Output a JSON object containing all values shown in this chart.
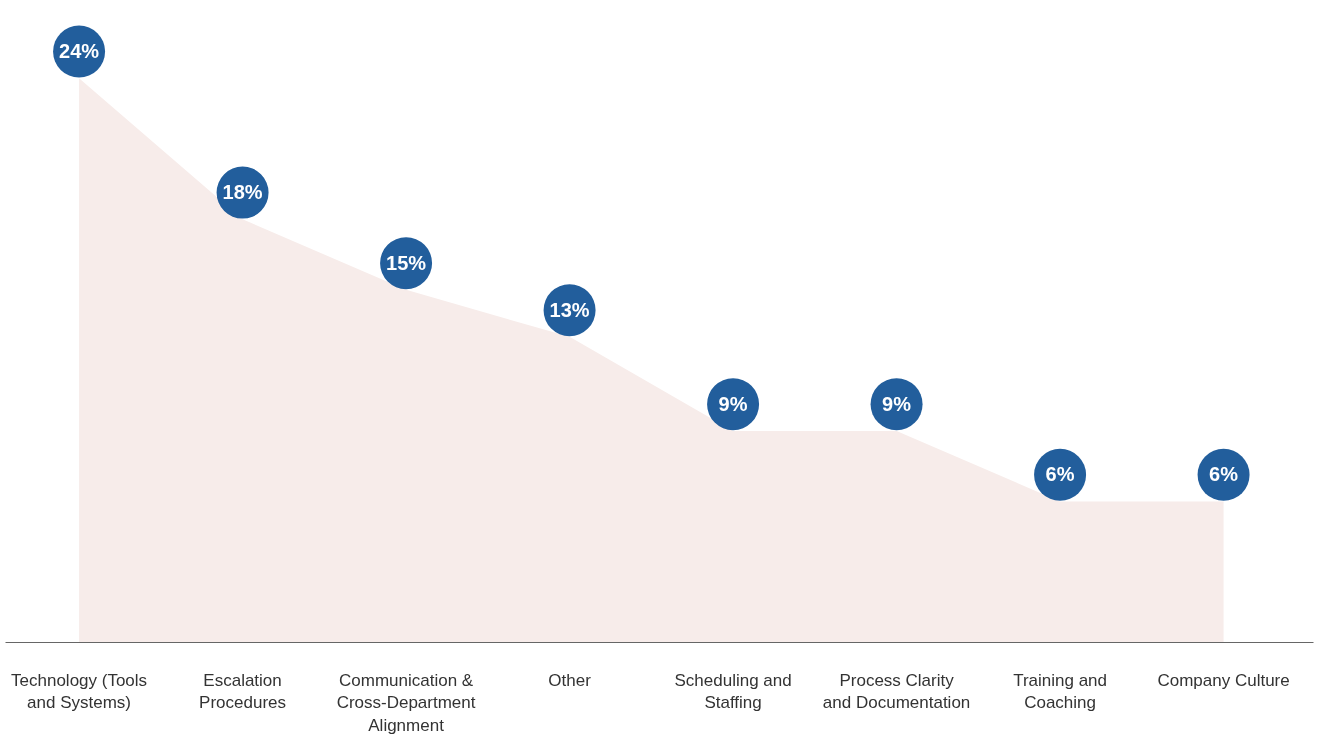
{
  "chart_data": {
    "type": "area",
    "categories": [
      "Technology (Tools and Systems)",
      "Escalation Procedures",
      "Communication & Cross-Department Alignment",
      "Other",
      "Scheduling and Staffing",
      "Process Clarity and Documentation",
      "Training and Coaching",
      "Company Culture"
    ],
    "series": [
      {
        "color": "#f7ecea",
        "values": [
          24,
          18,
          15,
          13,
          9,
          9,
          6,
          6
        ],
        "value_labels": [
          "24%",
          "18%",
          "15%",
          "13%",
          "9%",
          "9%",
          "6%",
          "6%"
        ]
      }
    ],
    "colors": [
      "#225e9c",
      "#225e9c",
      "#225e9c",
      "#225e9c",
      "#225e9c",
      "#225e9c",
      "#225e9c",
      "#225e9c"
    ],
    "grid": false
  }
}
